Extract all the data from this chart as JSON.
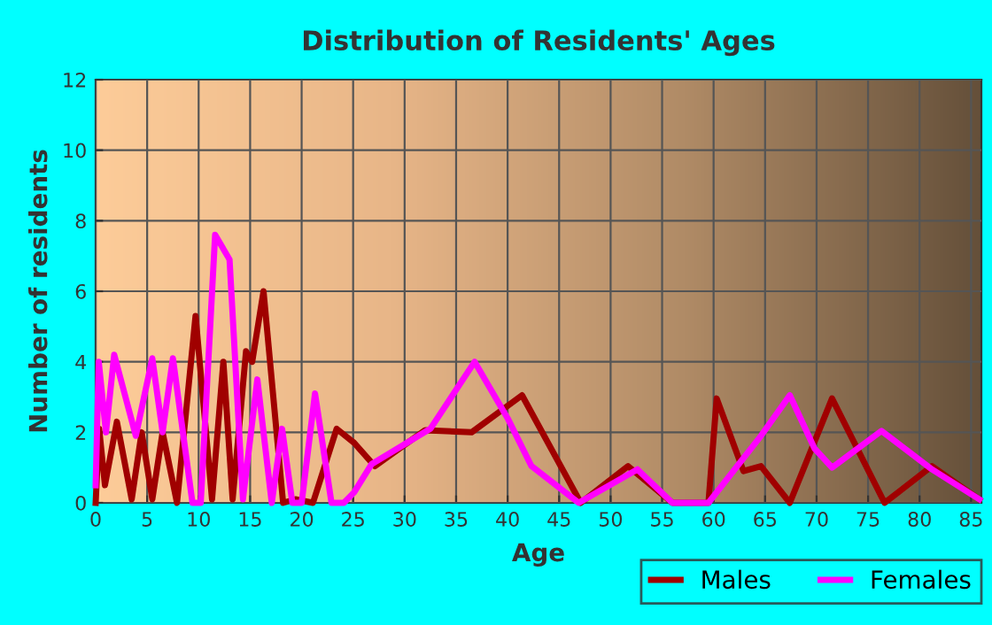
{
  "chart_data": {
    "type": "line",
    "title": "Distribution of Residents' Ages",
    "xlabel": "Age",
    "ylabel": "Number of residents",
    "xlim": [
      0,
      86
    ],
    "xticks": [
      0,
      5,
      10,
      15,
      20,
      25,
      30,
      35,
      40,
      45,
      50,
      55,
      60,
      65,
      70,
      75,
      80,
      85
    ],
    "ylim": [
      0,
      12
    ],
    "yticks": [
      0,
      2,
      4,
      6,
      8,
      10,
      12
    ],
    "grid": true,
    "legend": "bottom",
    "marker": "none",
    "line_style": "solid",
    "series": [
      {
        "name": "Males",
        "color": "#a00000",
        "x": [
          0,
          0.34,
          0.9,
          2.06,
          3.5,
          4.47,
          5.5,
          6.5,
          7.9,
          9.7,
          11.3,
          12.4,
          13.3,
          14.6,
          15.2,
          16.3,
          18.2,
          19.4,
          21.1,
          23.4,
          25.1,
          27.1,
          32,
          36.5,
          41.4,
          47.1,
          51.7,
          56,
          59.5,
          60.3,
          62.9,
          64.6,
          67.4,
          71.5,
          76.6,
          81.2,
          85.8
        ],
        "values": [
          0,
          2.1,
          0.5,
          2.3,
          0.1,
          2.0,
          0.1,
          2.0,
          0,
          5.3,
          0.1,
          4.0,
          0.1,
          4.3,
          4.0,
          6.0,
          0,
          0.1,
          0,
          2.1,
          1.7,
          1.04,
          2.06,
          2.0,
          3.05,
          0,
          1.04,
          0,
          0,
          2.96,
          0.9,
          1.04,
          0,
          2.96,
          0,
          1.04,
          0.1
        ]
      },
      {
        "name": "Females",
        "color": "#ff00ff",
        "x": [
          0,
          0.3,
          1.0,
          1.8,
          3.9,
          5.5,
          6.5,
          7.5,
          9.4,
          10.2,
          11.6,
          12.6,
          13,
          14.3,
          15.7,
          17.1,
          18.1,
          19.1,
          20,
          21.3,
          22.9,
          24.1,
          25.1,
          26.8,
          32.5,
          36.8,
          40,
          42.3,
          46.9,
          52.6,
          56,
          59.5,
          64.6,
          67.4,
          69.8,
          71.5,
          76.3,
          81.2,
          85.8
        ],
        "values": [
          0.5,
          4.0,
          2.0,
          4.2,
          1.9,
          4.1,
          2.0,
          4.1,
          0,
          0,
          7.6,
          7.1,
          6.9,
          0.1,
          3.5,
          0,
          2.1,
          0,
          0,
          3.1,
          0,
          0,
          0.3,
          1.1,
          2.1,
          4.0,
          2.4,
          1.05,
          0,
          0.95,
          0,
          0,
          1.9,
          3.05,
          1.54,
          1.0,
          2.04,
          0.95,
          0.1
        ]
      }
    ]
  }
}
